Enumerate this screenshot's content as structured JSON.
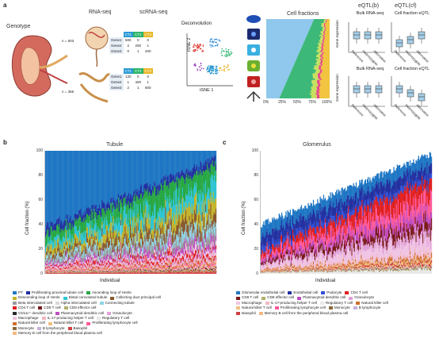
{
  "panel_a": {
    "letter": "a",
    "genotype_label": "Genotype",
    "rnaseq_label": "RNA-seq",
    "scrnaseq_label": "scRNA-seq",
    "deconvolution_label": "Deconvolution",
    "n_top": "n = 503",
    "n_bottom": "n = 356",
    "tsne_x": "tSNE 1",
    "tsne_y": "tSNE 2",
    "cell_fractions_title": "Cell fractions",
    "cf_ticks": [
      "0%",
      "25%",
      "50%",
      "75%",
      "100%"
    ],
    "matrix_top": {
      "cols": [
        "CT1",
        "CT2",
        "CT3"
      ],
      "rows": [
        {
          "gene": "Gene1",
          "vals": [
            "500",
            "0",
            "0"
          ]
        },
        {
          "gene": "Gene2",
          "vals": [
            "2",
            "200",
            "1"
          ]
        },
        {
          "gene": "Gene3",
          "vals": [
            "0",
            "1",
            "400"
          ]
        }
      ]
    },
    "matrix_bottom": {
      "cols": [
        "CT1",
        "CT2",
        "CT3"
      ],
      "rows": [
        {
          "gene": "Gene1",
          "vals": [
            "130",
            "0",
            "0"
          ]
        },
        {
          "gene": "Gene2",
          "vals": [
            "1",
            "400",
            "1"
          ]
        },
        {
          "gene": "Gene3",
          "vals": [
            "2",
            "1",
            "800"
          ]
        }
      ]
    },
    "eqtl_b_title": "eQTL(b)",
    "eqtl_cf_title": "eQTL(cf)",
    "bulk_label": "Bulk RNA-seq",
    "cf_label": "Cell fraction eQTL",
    "ylabel": "Gene expression",
    "genotypes": [
      "Reference",
      "Heterozygote",
      "Alternative"
    ]
  },
  "panel_b": {
    "letter": "b",
    "title": "Tubule",
    "ylabel": "Cell fraction (%)",
    "xlabel": "Individual",
    "yticks": [
      "0",
      "20",
      "40",
      "60",
      "80",
      "100"
    ],
    "legend": [
      {
        "label": "PT",
        "color": "#1f77c4"
      },
      {
        "label": "Proliferating proximal tubule cell",
        "color": "#2330a0"
      },
      {
        "label": "Ascending loop of Henle",
        "color": "#27a844"
      },
      {
        "label": "Descending loop of Henle",
        "color": "#c4b52a"
      },
      {
        "label": "Distal convoluted tubule",
        "color": "#2ec4d4"
      },
      {
        "label": "Collecting duct principal cell",
        "color": "#8a5a2e"
      },
      {
        "label": "Beta intercalated cell",
        "color": "#9a9a9a"
      },
      {
        "label": "Alpha intercalated cell",
        "color": "#d8d8d8"
      },
      {
        "label": "Connecting tubule",
        "color": "#8fd4e6"
      },
      {
        "label": "CD4 T cell",
        "color": "#e02020"
      },
      {
        "label": "CD8 T cell",
        "color": "#7a1a1a"
      },
      {
        "label": "CD8 effector cell",
        "color": "#b0b06a"
      },
      {
        "label": "CD11c⁺ dendritic cell",
        "color": "#2a2a2a"
      },
      {
        "label": "Plasmacytoid dendritic cell",
        "color": "#c04cc0"
      },
      {
        "label": "Granulocyte",
        "color": "#e0a0d8"
      },
      {
        "label": "Macrophage",
        "color": "#f0c4e4"
      },
      {
        "label": "IL-17-producing helper T cell",
        "color": "#f2b8c0"
      },
      {
        "label": "Regulatory T cell",
        "color": "#e8e8e8"
      },
      {
        "label": "Natural killer cell",
        "color": "#d07030"
      },
      {
        "label": "Natural killer T cell",
        "color": "#f0c080"
      },
      {
        "label": "Proliferating lymphocyte cell",
        "color": "#ff5a9a"
      },
      {
        "label": "Monocyte",
        "color": "#8c6a3a"
      },
      {
        "label": "B lymphocyte",
        "color": "#c8b0d8"
      },
      {
        "label": "Basophil",
        "color": "#d04040"
      },
      {
        "label": "Memory B cell from the peripheral blood plasma cell",
        "color": "#f4b880"
      }
    ]
  },
  "panel_c": {
    "letter": "c",
    "title": "Glomerulus",
    "ylabel": "Cell fraction (%)",
    "xlabel": "Individual",
    "yticks": [
      "0",
      "20",
      "40",
      "60",
      "80",
      "100"
    ],
    "legend": [
      {
        "label": "Glomerular endothelial cell",
        "color": "#1f77c4"
      },
      {
        "label": "Endothelial cell",
        "color": "#2330a0"
      },
      {
        "label": "Podocyte",
        "color": "#3050d8"
      },
      {
        "label": "CD4 T cell",
        "color": "#e02020"
      },
      {
        "label": "CD8 T cell",
        "color": "#7a1a1a"
      },
      {
        "label": "CD8 effector cell",
        "color": "#b0b06a"
      },
      {
        "label": "Plasmacytoid dendritic cell",
        "color": "#c04cc0"
      },
      {
        "label": "Granulocyte",
        "color": "#e0a0d8"
      },
      {
        "label": "Macrophage",
        "color": "#f0c4e4"
      },
      {
        "label": "IL-17-producing helper T cell",
        "color": "#f2b8c0"
      },
      {
        "label": "Regulatory T cell",
        "color": "#e8e8e8"
      },
      {
        "label": "Natural killer cell",
        "color": "#d07030"
      },
      {
        "label": "Natural killer T cell",
        "color": "#f0c080"
      },
      {
        "label": "Proliferating lymphocyte cell",
        "color": "#ff5a9a"
      },
      {
        "label": "Monocyte",
        "color": "#8c6a3a"
      },
      {
        "label": "B lymphocyte",
        "color": "#c8b0d8"
      },
      {
        "label": "Basophil",
        "color": "#d04040"
      },
      {
        "label": "Memory B cell from the peripheral blood plasma cell",
        "color": "#f4b880"
      }
    ]
  }
}
